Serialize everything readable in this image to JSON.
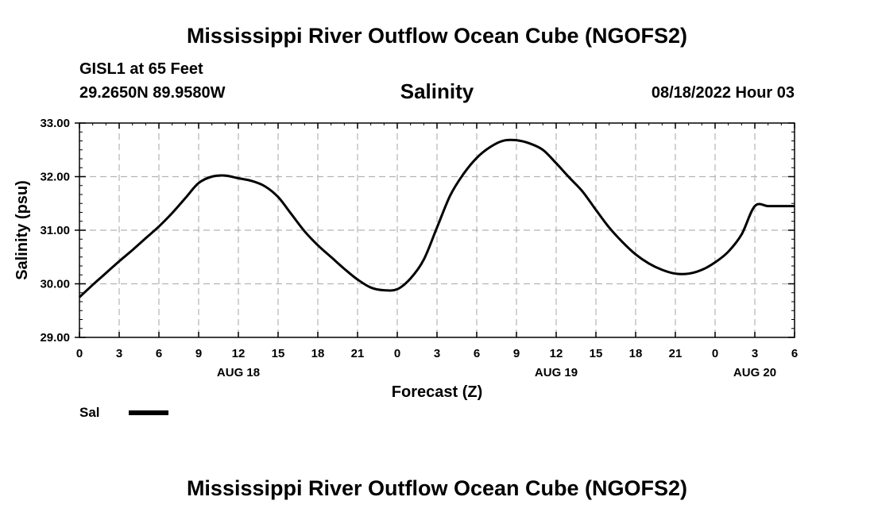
{
  "header": {
    "title": "Mississippi River Outflow Ocean Cube (NGOFS2)",
    "station": "GISL1 at 65 Feet",
    "coords": "29.2650N  89.9580W",
    "parameter": "Salinity",
    "datetime": "08/18/2022 Hour 03"
  },
  "footer": {
    "title": "Mississippi River Outflow Ocean Cube (NGOFS2)"
  },
  "chart_data": {
    "type": "line",
    "title": "Salinity",
    "xlabel": "Forecast (Z)",
    "ylabel": "Salinity (psu)",
    "ylim": [
      29.0,
      33.0
    ],
    "xlim": [
      0,
      54
    ],
    "grid": true,
    "y_ticks": [
      "29.00",
      "30.00",
      "31.00",
      "32.00",
      "33.00"
    ],
    "y_tick_values": [
      29,
      30,
      31,
      32,
      33
    ],
    "x_ticks": [
      "0",
      "3",
      "6",
      "9",
      "12",
      "15",
      "18",
      "21",
      "0",
      "3",
      "6",
      "9",
      "12",
      "15",
      "18",
      "21",
      "0",
      "3",
      "6"
    ],
    "x_tick_values": [
      0,
      3,
      6,
      9,
      12,
      15,
      18,
      21,
      24,
      27,
      30,
      33,
      36,
      39,
      42,
      45,
      48,
      51,
      54
    ],
    "x_day_labels": [
      {
        "label": "AUG 18",
        "x": 12
      },
      {
        "label": "AUG 19",
        "x": 36
      },
      {
        "label": "AUG 20",
        "x": 51
      }
    ],
    "series": [
      {
        "name": "Sal",
        "color": "#000000",
        "x": [
          0,
          1,
          2,
          3,
          4,
          5,
          6,
          7,
          8,
          9,
          10,
          11,
          12,
          13,
          14,
          15,
          16,
          17,
          18,
          19,
          20,
          21,
          22,
          23,
          24,
          25,
          26,
          27,
          28,
          29,
          30,
          31,
          32,
          33,
          34,
          35,
          36,
          37,
          38,
          39,
          40,
          41,
          42,
          43,
          44,
          45,
          46,
          47,
          48,
          49,
          50,
          51,
          52,
          53,
          54
        ],
        "values": [
          29.75,
          29.98,
          30.2,
          30.42,
          30.63,
          30.85,
          31.07,
          31.32,
          31.6,
          31.88,
          32.0,
          32.02,
          31.97,
          31.92,
          31.82,
          31.62,
          31.3,
          30.98,
          30.72,
          30.5,
          30.28,
          30.08,
          29.93,
          29.88,
          29.9,
          30.1,
          30.45,
          31.05,
          31.65,
          32.05,
          32.35,
          32.55,
          32.67,
          32.68,
          32.62,
          32.5,
          32.25,
          31.98,
          31.72,
          31.38,
          31.05,
          30.78,
          30.55,
          30.38,
          30.26,
          30.19,
          30.19,
          30.26,
          30.4,
          30.6,
          30.92,
          31.45,
          31.45,
          31.45,
          31.45
        ]
      }
    ],
    "legend": [
      {
        "label": "Sal",
        "color": "#000000"
      }
    ],
    "legend_position": "bottom-left"
  }
}
